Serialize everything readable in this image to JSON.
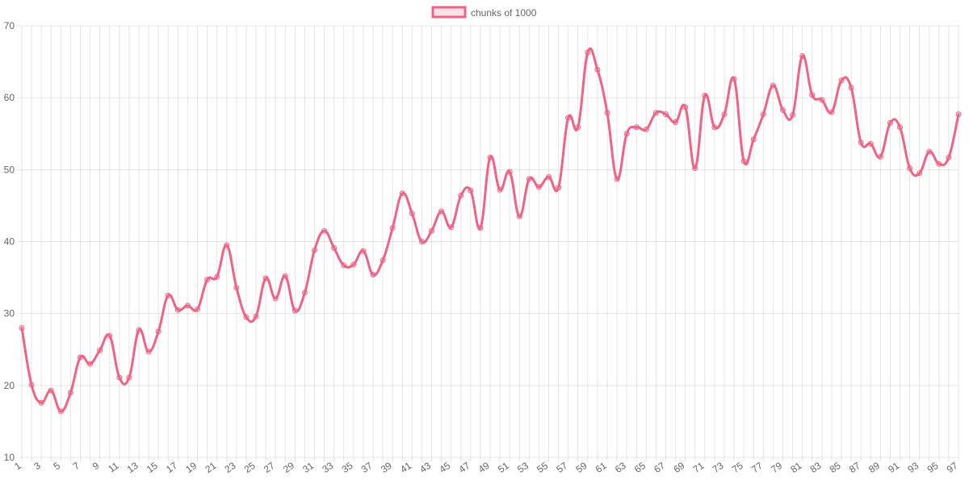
{
  "chart_data": {
    "type": "line",
    "x": [
      1,
      2,
      3,
      4,
      5,
      6,
      7,
      8,
      9,
      10,
      11,
      12,
      13,
      14,
      15,
      16,
      17,
      18,
      19,
      20,
      21,
      22,
      23,
      24,
      25,
      26,
      27,
      28,
      29,
      30,
      31,
      32,
      33,
      34,
      35,
      36,
      37,
      38,
      39,
      40,
      41,
      42,
      43,
      44,
      45,
      46,
      47,
      48,
      49,
      50,
      51,
      52,
      53,
      54,
      55,
      56,
      57,
      58,
      59,
      60,
      61,
      62,
      63,
      64,
      65,
      66,
      67,
      68,
      69,
      70,
      71,
      72,
      73,
      74,
      75,
      76,
      77,
      78,
      79,
      80,
      81,
      82,
      83,
      84,
      85,
      86,
      87,
      88,
      89,
      90,
      91,
      92,
      93,
      94,
      95,
      96,
      97
    ],
    "x_tick_labels": [
      "1",
      "3",
      "5",
      "7",
      "9",
      "11",
      "13",
      "15",
      "17",
      "19",
      "21",
      "23",
      "25",
      "27",
      "29",
      "31",
      "33",
      "35",
      "37",
      "39",
      "41",
      "43",
      "45",
      "47",
      "49",
      "51",
      "53",
      "55",
      "57",
      "59",
      "61",
      "63",
      "65",
      "67",
      "69",
      "71",
      "73",
      "75",
      "77",
      "79",
      "81",
      "83",
      "85",
      "87",
      "89",
      "91",
      "93",
      "95",
      "97"
    ],
    "series": [
      {
        "name": "chunks of 1000",
        "color": "#f06384",
        "values": [
          28.0,
          20.1,
          17.6,
          19.3,
          16.4,
          19.0,
          23.9,
          23.0,
          24.9,
          26.9,
          21.1,
          21.1,
          27.7,
          24.7,
          27.5,
          32.5,
          30.5,
          31.1,
          30.6,
          34.7,
          35.1,
          39.5,
          33.6,
          29.5,
          29.6,
          34.9,
          32.1,
          35.2,
          30.4,
          32.9,
          38.8,
          41.5,
          39.1,
          36.7,
          36.8,
          38.7,
          35.4,
          37.4,
          41.9,
          46.7,
          43.9,
          40.0,
          41.5,
          44.2,
          42.0,
          46.4,
          47.1,
          41.9,
          51.7,
          47.2,
          49.7,
          43.5,
          48.7,
          47.6,
          49.0,
          47.5,
          57.2,
          55.9,
          66.3,
          63.9,
          57.9,
          48.7,
          55.0,
          55.9,
          55.6,
          57.9,
          57.7,
          56.6,
          58.7,
          50.2,
          60.3,
          55.9,
          57.7,
          62.6,
          51.2,
          54.2,
          57.7,
          61.7,
          58.3,
          57.6,
          65.8,
          60.4,
          59.7,
          58.0,
          62.4,
          61.4,
          53.8,
          53.6,
          51.8,
          56.5,
          55.9,
          50.2,
          49.5,
          52.5,
          50.8,
          51.7,
          57.7
        ]
      }
    ],
    "y_ticks": [
      "10",
      "20",
      "30",
      "40",
      "50",
      "60",
      "70"
    ],
    "ylim": [
      10,
      70
    ],
    "grid": true,
    "legend_position": "top-center"
  }
}
